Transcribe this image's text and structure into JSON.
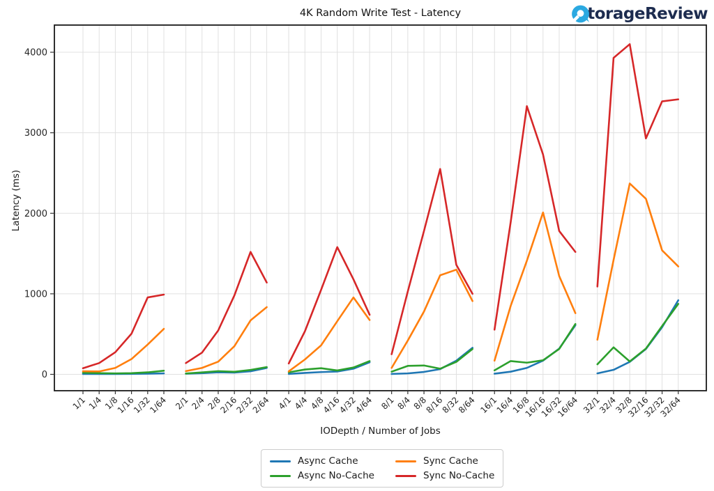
{
  "header": {
    "title": "4K Random Write Test - Latency",
    "brand": "StorageReview",
    "brand_color": "#1d2c4f",
    "logo_icon": "storagereview-bubble-icon",
    "logo_icon_color": "#2ba9e1"
  },
  "chart_data": {
    "type": "line",
    "title": "4K Random Write Test - Latency",
    "xlabel": "IODepth / Number of Jobs",
    "ylabel": "Latency (ms)",
    "y_ticks": [
      0,
      1000,
      2000,
      3000,
      4000
    ],
    "ylim": [
      -200,
      4330
    ],
    "grid": true,
    "group_size": 6,
    "legend_position": "bottom-center",
    "legend_columns": 2,
    "categories": [
      "1/1",
      "1/4",
      "1/8",
      "1/16",
      "1/32",
      "1/64",
      "2/1",
      "2/4",
      "2/8",
      "2/16",
      "2/32",
      "2/64",
      "4/1",
      "4/4",
      "4/8",
      "4/16",
      "4/32",
      "4/64",
      "8/1",
      "8/4",
      "8/8",
      "8/16",
      "8/32",
      "8/64",
      "16/1",
      "16/4",
      "16/8",
      "16/16",
      "16/32",
      "16/64",
      "32/1",
      "32/4",
      "32/8",
      "32/16",
      "32/32",
      "32/64"
    ],
    "series": [
      {
        "id": "async-cache",
        "name": "Async Cache",
        "color": "#1f77b4",
        "values": [
          5,
          5,
          5,
          6,
          8,
          12,
          8,
          15,
          25,
          22,
          38,
          80,
          5,
          18,
          28,
          35,
          70,
          150,
          5,
          12,
          30,
          65,
          170,
          330,
          8,
          33,
          80,
          170,
          320,
          610,
          12,
          56,
          155,
          315,
          585,
          920
        ]
      },
      {
        "id": "async-no-cache",
        "name": "Async No-Cache",
        "color": "#2ca02c",
        "values": [
          20,
          15,
          12,
          15,
          25,
          45,
          10,
          25,
          40,
          32,
          55,
          90,
          25,
          60,
          76,
          48,
          85,
          165,
          33,
          105,
          110,
          70,
          155,
          315,
          50,
          165,
          145,
          175,
          315,
          625,
          125,
          335,
          160,
          320,
          600,
          875
        ]
      },
      {
        "id": "sync-cache",
        "name": "Sync Cache",
        "color": "#ff7f0e",
        "values": [
          38,
          36,
          80,
          190,
          370,
          565,
          40,
          80,
          157,
          350,
          670,
          835,
          37,
          185,
          360,
          660,
          955,
          675,
          80,
          420,
          780,
          1230,
          1300,
          910,
          170,
          850,
          1410,
          2010,
          1220,
          760,
          430,
          1420,
          2370,
          2180,
          1540,
          1340
        ]
      },
      {
        "id": "sync-no-cache",
        "name": "Sync No-Cache",
        "color": "#d62728",
        "values": [
          76,
          140,
          275,
          505,
          955,
          990,
          140,
          270,
          545,
          980,
          1520,
          1140,
          135,
          535,
          1050,
          1580,
          1180,
          740,
          250,
          1030,
          1780,
          2550,
          1360,
          1000,
          555,
          1890,
          3330,
          2730,
          1780,
          1520,
          1090,
          3930,
          4100,
          2930,
          3390,
          3415
        ]
      }
    ]
  }
}
